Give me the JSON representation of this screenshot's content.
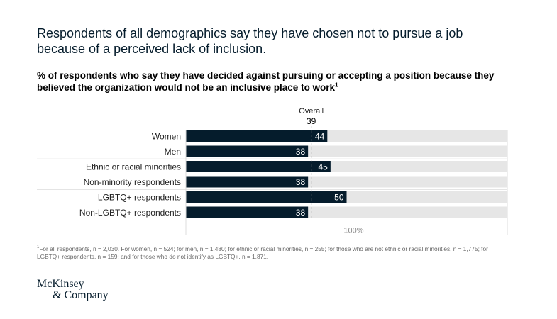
{
  "header": {
    "title": "Respondents of all demographics say they have chosen not to pursue a job because of a perceived lack of inclusion.",
    "subtitle": "% of respondents who say they have decided against pursuing or accepting a position because they believed the organization would not be an inclusive place to work",
    "subtitle_note": "1"
  },
  "chart_data": {
    "type": "bar",
    "orientation": "horizontal",
    "categories": [
      "Women",
      "Men",
      "Ethnic or racial minorities",
      "Non-minority respondents",
      "LGBTQ+ respondents",
      "Non-LGBTQ+ respondents"
    ],
    "values": [
      44,
      38,
      45,
      38,
      50,
      38
    ],
    "xlim": [
      0,
      100
    ],
    "x_end_label": "100%",
    "reference_line": {
      "label": "Overall",
      "value": 39
    },
    "colors": {
      "bar": "#051c2c",
      "track": "#e6e6e6",
      "reference": "#8c8c8c"
    }
  },
  "footnote": {
    "marker": "1",
    "text": "For all respondents, n = 2,030. For women, n = 524; for men, n = 1,480; for ethnic or racial minorities, n = 255; for those who are not ethnic or racial minorities, n = 1,775; for LGBTQ+ respondents, n = 159; and for those who do not identify as LGBTQ+, n = 1,871."
  },
  "logo": {
    "line1": "McKinsey",
    "line2": "& Company"
  }
}
